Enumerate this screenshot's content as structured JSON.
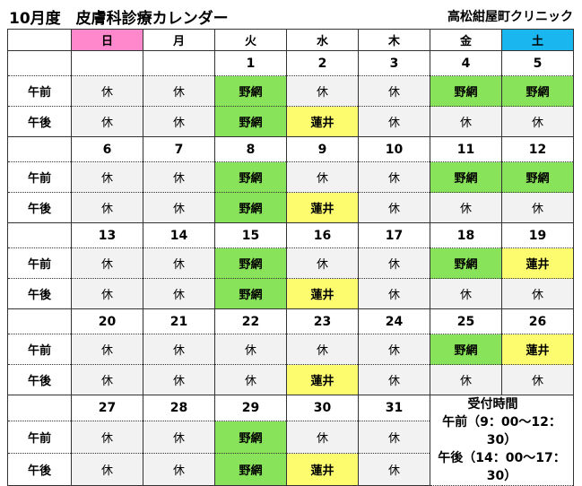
{
  "header": {
    "title": "10月度　皮膚科診療カレンダー",
    "clinic": "高松紺屋町クリニック"
  },
  "weekdays": [
    "日",
    "月",
    "火",
    "水",
    "木",
    "金",
    "土"
  ],
  "colors": {
    "sunday": "#ff88cc",
    "saturday": "#1ab6f0",
    "green": "#88e35a",
    "yellow": "#fdfc6f",
    "closed_bg": "#f2f2f2"
  },
  "labels": {
    "am": "午前",
    "pm": "午後"
  },
  "weeks": [
    {
      "dates": [
        "",
        "",
        "1",
        "2",
        "3",
        "4",
        "5"
      ],
      "am": [
        "休",
        "休",
        "野網",
        "休",
        "休",
        "野網",
        "野網"
      ],
      "pm": [
        "休",
        "休",
        "野網",
        "蓮井",
        "休",
        "休",
        "休"
      ]
    },
    {
      "dates": [
        "6",
        "7",
        "8",
        "9",
        "10",
        "11",
        "12"
      ],
      "am": [
        "休",
        "休",
        "野網",
        "休",
        "休",
        "野網",
        "野網"
      ],
      "pm": [
        "休",
        "休",
        "野網",
        "蓮井",
        "休",
        "休",
        "休"
      ]
    },
    {
      "dates": [
        "13",
        "14",
        "15",
        "16",
        "17",
        "18",
        "19"
      ],
      "am": [
        "休",
        "休",
        "野網",
        "休",
        "休",
        "野網",
        "蓮井"
      ],
      "pm": [
        "休",
        "休",
        "野網",
        "蓮井",
        "休",
        "休",
        "休"
      ]
    },
    {
      "dates": [
        "20",
        "21",
        "22",
        "23",
        "24",
        "25",
        "26"
      ],
      "am": [
        "休",
        "休",
        "休",
        "休",
        "休",
        "野網",
        "蓮井"
      ],
      "pm": [
        "休",
        "休",
        "休",
        "蓮井",
        "休",
        "休",
        "休"
      ]
    },
    {
      "dates": [
        "27",
        "28",
        "29",
        "30",
        "31"
      ],
      "am": [
        "休",
        "休",
        "野網",
        "休",
        "休"
      ],
      "pm": [
        "休",
        "休",
        "野網",
        "蓮井",
        "休"
      ]
    }
  ],
  "reception": {
    "title": "受付時間",
    "am": "午前（9：00～12：30）",
    "pm": "午後（14：00～17：30）"
  }
}
